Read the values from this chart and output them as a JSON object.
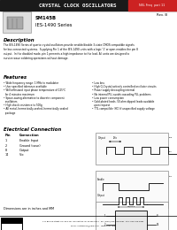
{
  "title": "CRYSTAL CLOCK OSCILLATORS",
  "title_bg": "#1a1a1a",
  "title_color": "#ffffff",
  "tag_bg": "#cc2222",
  "tag_text": "NEL Freq  part 11",
  "rev_text": "Rev. B",
  "model": "SM145B",
  "series": "IES-1490 Series",
  "desc_title": "Description",
  "desc_body": "The IES-1490 Series of quartz crystal oscillators provide enable/disable 3-state CMOS compatible signals\nfor bus connected systems.  Supplying Pin 1 of the IES-1490 units with a logic '1' or open enables the pin 8\noutput.  In the disabled mode, pin 1 presents a high impedance to the load. All units are designed to\nsurvive wave soldering operations without damage.",
  "feat_title": "Features",
  "features_left": [
    "Wide frequency range: 1 MHz to modulator",
    "User specified tolerance available",
    "Will withstand input phase temperature of 125°C",
    "  for 4 minutes maximum",
    "Space-saving alternative to discrete component",
    "  oscillators",
    "High shock resistance to 500g",
    "All metal, hermetically-sealed, hermetically sealed",
    "  package"
  ],
  "features_right": [
    "Low loss",
    "High Q-Crystal actively controlled oscillator circuits",
    "Power supply decoupling internal",
    "No internal PLL avoids cascading PLL problems",
    "Low power consumption",
    "Gold plated leads- 50-ohm dipped leads available",
    "  upon request",
    "TTL compatible (HC) if unspecified supply voltage"
  ],
  "ec_title": "Electrical Connection",
  "pins": [
    [
      "1",
      "Enable Input"
    ],
    [
      "2",
      "Ground (case)"
    ],
    [
      "8",
      "Output"
    ],
    [
      "14",
      "Vcc"
    ]
  ],
  "dim_note": "Dimensions are in inches and MM",
  "footer_address": "117 Belvue Street, P.O. Box 427, Burlington, WI 53105-0427   Ph: (Main) 262-763-3591  FAX: 262-763-2881\nEmail: custservice@nelfc.com    www.nelfc.com",
  "bg_color": "#f8f8f8",
  "page_bg": "#ffffff"
}
